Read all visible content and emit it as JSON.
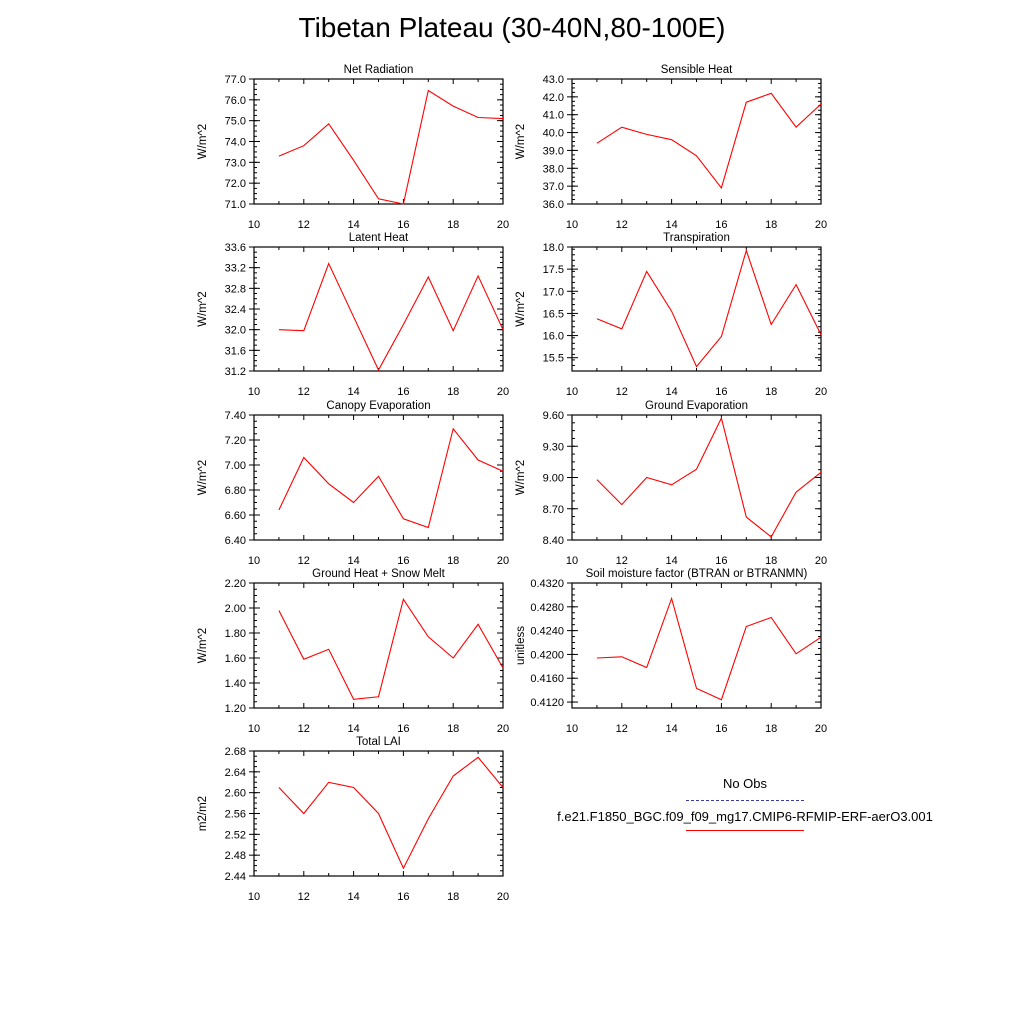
{
  "page": {
    "title": "Tibetan Plateau (30-40N,80-100E)"
  },
  "legend": {
    "obs_label": "No Obs",
    "model_label": "f.e21.F1850_BGC.f09_f09_mg17.CMIP6-RFMIP-ERF-aerO3.001",
    "obs_color": "#3a3aa8",
    "model_color": "#ff0000"
  },
  "chart_data": [
    {
      "type": "line",
      "title": "Net Radiation",
      "ylabel": "W/m^2",
      "x": [
        11,
        12,
        13,
        14,
        15,
        16,
        17,
        18,
        19,
        20
      ],
      "values": [
        73.3,
        73.8,
        74.85,
        73.1,
        71.25,
        71.0,
        76.45,
        75.7,
        75.15,
        75.1
      ],
      "xlim": [
        10,
        20
      ],
      "ylim": [
        71.0,
        77.0
      ],
      "xticks": [
        "10",
        "12",
        "14",
        "16",
        "18",
        "20"
      ],
      "yticks": [
        "71.0",
        "72.0",
        "73.0",
        "74.0",
        "75.0",
        "76.0",
        "77.0"
      ]
    },
    {
      "type": "line",
      "title": "Sensible Heat",
      "ylabel": "W/m^2",
      "x": [
        11,
        12,
        13,
        14,
        15,
        16,
        17,
        18,
        19,
        20
      ],
      "values": [
        39.4,
        40.3,
        39.9,
        39.6,
        38.7,
        36.9,
        41.7,
        42.2,
        40.3,
        41.6
      ],
      "xlim": [
        10,
        20
      ],
      "ylim": [
        36.0,
        43.0
      ],
      "xticks": [
        "10",
        "12",
        "14",
        "16",
        "18",
        "20"
      ],
      "yticks": [
        "36.0",
        "37.0",
        "38.0",
        "39.0",
        "40.0",
        "41.0",
        "42.0",
        "43.0"
      ]
    },
    {
      "type": "line",
      "title": "Latent Heat",
      "ylabel": "W/m^2",
      "x": [
        11,
        12,
        13,
        14,
        15,
        16,
        17,
        18,
        19,
        20
      ],
      "values": [
        32.0,
        31.98,
        33.28,
        32.25,
        31.22,
        32.1,
        33.02,
        31.98,
        33.04,
        32.0
      ],
      "xlim": [
        10,
        20
      ],
      "ylim": [
        31.2,
        33.6
      ],
      "xticks": [
        "10",
        "12",
        "14",
        "16",
        "18",
        "20"
      ],
      "yticks": [
        "31.2",
        "31.6",
        "32.0",
        "32.4",
        "32.8",
        "33.2",
        "33.6"
      ]
    },
    {
      "type": "line",
      "title": "Transpiration",
      "ylabel": "W/m^2",
      "x": [
        11,
        12,
        13,
        14,
        15,
        16,
        17,
        18,
        19,
        20
      ],
      "values": [
        16.38,
        16.15,
        17.45,
        16.55,
        15.3,
        15.98,
        17.92,
        16.25,
        17.15,
        16.02
      ],
      "xlim": [
        10,
        20
      ],
      "ylim": [
        15.2,
        18.0
      ],
      "xticks": [
        "10",
        "12",
        "14",
        "16",
        "18",
        "20"
      ],
      "yticks": [
        "15.5",
        "16.0",
        "16.5",
        "17.0",
        "17.5",
        "18.0"
      ]
    },
    {
      "type": "line",
      "title": "Canopy Evaporation",
      "ylabel": "W/m^2",
      "x": [
        11,
        12,
        13,
        14,
        15,
        16,
        17,
        18,
        19,
        20
      ],
      "values": [
        6.64,
        7.06,
        6.85,
        6.7,
        6.91,
        6.57,
        6.5,
        7.29,
        7.04,
        6.95
      ],
      "xlim": [
        10,
        20
      ],
      "ylim": [
        6.4,
        7.4
      ],
      "xticks": [
        "10",
        "12",
        "14",
        "16",
        "18",
        "20"
      ],
      "yticks": [
        "6.40",
        "6.60",
        "6.80",
        "7.00",
        "7.20",
        "7.40"
      ]
    },
    {
      "type": "line",
      "title": "Ground Evaporation",
      "ylabel": "W/m^2",
      "x": [
        11,
        12,
        13,
        14,
        15,
        16,
        17,
        18,
        19,
        20
      ],
      "values": [
        8.98,
        8.74,
        9.0,
        8.93,
        9.08,
        9.57,
        8.62,
        8.43,
        8.86,
        9.05
      ],
      "xlim": [
        10,
        20
      ],
      "ylim": [
        8.4,
        9.6
      ],
      "xticks": [
        "10",
        "12",
        "14",
        "16",
        "18",
        "20"
      ],
      "yticks": [
        "8.40",
        "8.70",
        "9.00",
        "9.30",
        "9.60"
      ]
    },
    {
      "type": "line",
      "title": "Ground Heat + Snow Melt",
      "ylabel": "W/m^2",
      "x": [
        11,
        12,
        13,
        14,
        15,
        16,
        17,
        18,
        19,
        20
      ],
      "values": [
        1.98,
        1.59,
        1.67,
        1.27,
        1.29,
        2.07,
        1.77,
        1.6,
        1.87,
        1.52
      ],
      "xlim": [
        10,
        20
      ],
      "ylim": [
        1.2,
        2.2
      ],
      "xticks": [
        "10",
        "12",
        "14",
        "16",
        "18",
        "20"
      ],
      "yticks": [
        "1.20",
        "1.40",
        "1.60",
        "1.80",
        "2.00",
        "2.20"
      ]
    },
    {
      "type": "line",
      "title": "Soil moisture factor (BTRAN or BTRANMN)",
      "ylabel": "unitless",
      "x": [
        11,
        12,
        13,
        14,
        15,
        16,
        17,
        18,
        19,
        20
      ],
      "values": [
        0.4194,
        0.4196,
        0.4178,
        0.4294,
        0.4143,
        0.4124,
        0.4247,
        0.4262,
        0.4201,
        0.4229
      ],
      "xlim": [
        10,
        20
      ],
      "ylim": [
        0.411,
        0.432
      ],
      "xticks": [
        "10",
        "12",
        "14",
        "16",
        "18",
        "20"
      ],
      "yticks": [
        "0.4120",
        "0.4160",
        "0.4200",
        "0.4240",
        "0.4280",
        "0.4320"
      ]
    },
    {
      "type": "line",
      "title": "Total LAI",
      "ylabel": "m2/m2",
      "x": [
        11,
        12,
        13,
        14,
        15,
        16,
        17,
        18,
        19,
        20
      ],
      "values": [
        2.61,
        2.56,
        2.62,
        2.61,
        2.56,
        2.455,
        2.55,
        2.632,
        2.668,
        2.61
      ],
      "xlim": [
        10,
        20
      ],
      "ylim": [
        2.44,
        2.68
      ],
      "xticks": [
        "10",
        "12",
        "14",
        "16",
        "18",
        "20"
      ],
      "yticks": [
        "2.44",
        "2.48",
        "2.52",
        "2.56",
        "2.60",
        "2.64",
        "2.68"
      ]
    }
  ]
}
